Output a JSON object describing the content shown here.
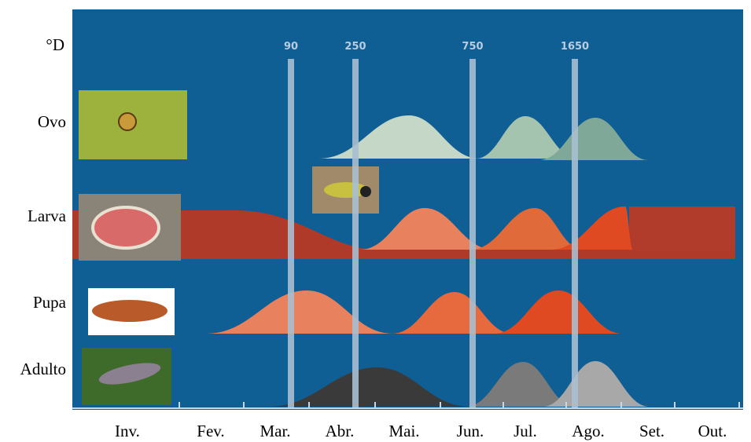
{
  "axis_label": "°D",
  "degree_days": [
    "90",
    "250",
    "750",
    "1650"
  ],
  "stages": [
    "Ovo",
    "Larva",
    "Pupa",
    "Adulto"
  ],
  "months": [
    "Inv.",
    "Fev.",
    "Mar.",
    "Abr.",
    "Mai.",
    "Jun.",
    "Jul.",
    "Ago.",
    "Set.",
    "Out."
  ]
}
